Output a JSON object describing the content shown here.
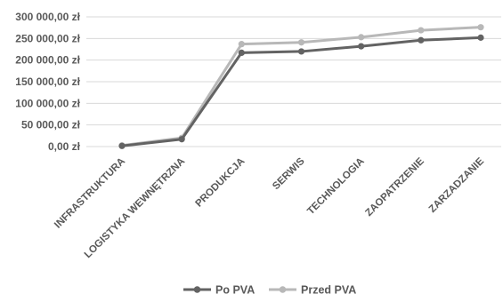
{
  "chart_data": {
    "type": "line",
    "title": "",
    "xlabel": "",
    "ylabel": "",
    "categories": [
      "INFRASTRUKTURA",
      "LOGISTYKA WEWNĘTRZNA",
      "PRODUKCJA",
      "SERWIS",
      "TECHNOLOGIA",
      "ZAOPATRZENIE",
      "ZARZADZANIE"
    ],
    "y_tick_labels": [
      "0,00 zł",
      "50 000,00 zł",
      "100 000,00 zł",
      "150 000,00 zł",
      "200 000,00 zł",
      "250 000,00 zł",
      "300 000,00 zł"
    ],
    "y_ticks": [
      0,
      50000,
      100000,
      150000,
      200000,
      250000,
      300000
    ],
    "ylim": [
      0,
      300000
    ],
    "grid": true,
    "legend_position": "bottom",
    "series": [
      {
        "name": "Po PVA",
        "color": "#636363",
        "values": [
          1500,
          17000,
          217000,
          220000,
          232000,
          246000,
          252000
        ]
      },
      {
        "name": "Przed PVA",
        "color": "#b8b8b8",
        "values": [
          2500,
          20000,
          237000,
          241000,
          253000,
          269000,
          276000
        ]
      }
    ]
  }
}
